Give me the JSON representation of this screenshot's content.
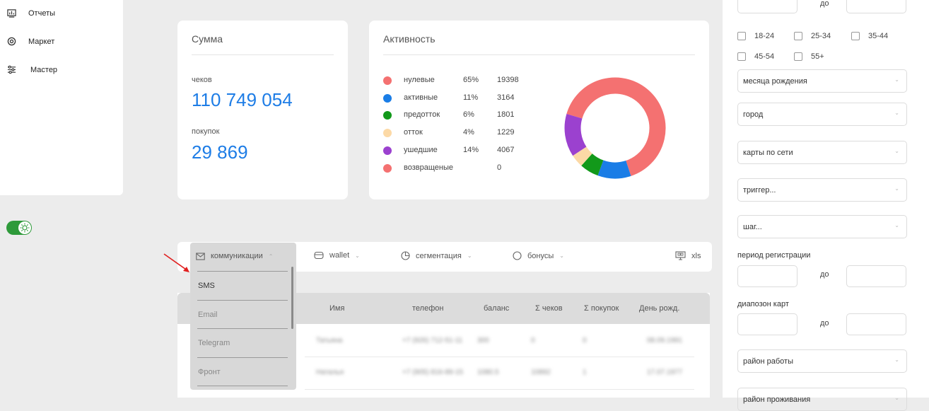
{
  "sidebar": {
    "items": [
      {
        "label": "Отчеты",
        "icon": "chart-board-icon"
      },
      {
        "label": "Маркет",
        "icon": "target-icon"
      },
      {
        "label": "Мастер",
        "icon": "sliders-icon"
      }
    ],
    "theme_toggle": {
      "state": "on",
      "icon": "sun-icon"
    }
  },
  "sum_card": {
    "title": "Сумма",
    "checks_label": "чеков",
    "checks_value": "110 749 054",
    "purchases_label": "покупок",
    "purchases_value": "29 869"
  },
  "activity_card": {
    "title": "Активность",
    "legend": [
      {
        "name": "нулевые",
        "pct": "65%",
        "count": "19398",
        "color": "#f47171"
      },
      {
        "name": "активные",
        "pct": "11%",
        "count": "3164",
        "color": "#1a7de6"
      },
      {
        "name": "предотток",
        "pct": "6%",
        "count": "1801",
        "color": "#12991a"
      },
      {
        "name": "отток",
        "pct": "4%",
        "count": "1229",
        "color": "#fcd9a6"
      },
      {
        "name": "ушедшие",
        "pct": "14%",
        "count": "4067",
        "color": "#9b41cf"
      },
      {
        "name": "возвращеные",
        "pct": "",
        "count": "0",
        "color": "#f47171"
      }
    ]
  },
  "chart_data": {
    "type": "pie",
    "title": "",
    "categories": [
      "нулевые",
      "активные",
      "предотток",
      "отток",
      "ушедшие",
      "возвращеные"
    ],
    "values": [
      19398,
      3164,
      1801,
      1229,
      4067,
      0
    ],
    "colors": [
      "#f47171",
      "#1a7de6",
      "#12991a",
      "#fcd9a6",
      "#9b41cf",
      "#f47171"
    ],
    "donut": true
  },
  "toolbar": {
    "communications": "коммуникации",
    "wallet": "wallet",
    "segmentation": "сегментация",
    "bonuses": "бонусы",
    "export": "xls"
  },
  "dropdown": {
    "options": [
      "SMS",
      "Email",
      "Telegram",
      "Фронт"
    ]
  },
  "table": {
    "headers": [
      "Имя",
      "телефон",
      "баланс",
      "Σ чеков",
      "Σ покупок",
      "День рожд."
    ],
    "rows": [
      [
        "Татьяна",
        "+7 (926) 712-51-11",
        "300",
        "0",
        "0",
        "08.09.1991"
      ],
      [
        "Наталья",
        "+7 (905) 816-89-15",
        "1080.5",
        "10892",
        "1",
        "17.07.1977"
      ]
    ]
  },
  "filters": {
    "do_label": "до",
    "age_groups": [
      "18-24",
      "25-34",
      "35-44",
      "45-54",
      "55+"
    ],
    "birth_month": "месяца рождения",
    "city": "город",
    "cards_by_network": "карты по сети",
    "trigger": "триггер...",
    "step": "шаг...",
    "registration_period": "период регистрации",
    "card_range": "диапозон карт",
    "work_area": "район работы",
    "residence_area": "район проживания"
  }
}
